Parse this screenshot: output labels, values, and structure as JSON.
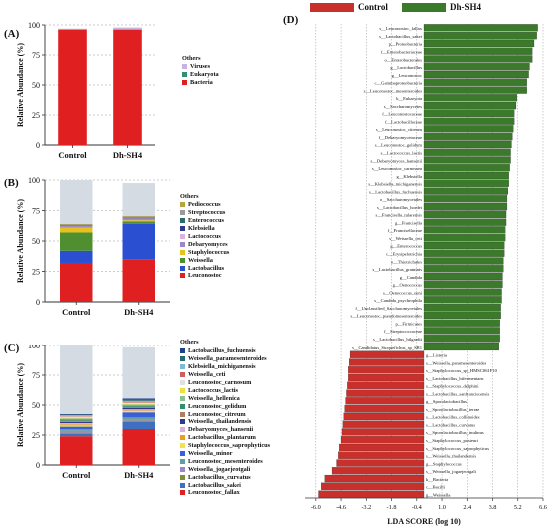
{
  "colors": {
    "control": "#c9302c",
    "dhsh4": "#3a7a2a",
    "grid": "#9a9a9a"
  },
  "panels": {
    "a": {
      "letter": "(A)",
      "ylabel": "Relative Abundance (%)",
      "legend_title": "Others",
      "legend": [
        {
          "name": "Viruses",
          "color": "#c8b4e0"
        },
        {
          "name": "Eukaryota",
          "color": "#2f8f6f"
        },
        {
          "name": "Bacteria",
          "color": "#e02020"
        }
      ]
    },
    "b": {
      "letter": "(B)",
      "ylabel": "Relative Abundance (%)",
      "legend_title": "Others",
      "legend": [
        {
          "name": "Pediococcus",
          "color": "#b5a642"
        },
        {
          "name": "Streptococcus",
          "color": "#9a9a9a"
        },
        {
          "name": "Enterococcus",
          "color": "#2a6b6b"
        },
        {
          "name": "Klebsiella",
          "color": "#2e3a8c"
        },
        {
          "name": "Lactococcus",
          "color": "#d9b3d9"
        },
        {
          "name": "Debaryomyces",
          "color": "#9b87c9"
        },
        {
          "name": "Staphylococcus",
          "color": "#e8c020"
        },
        {
          "name": "Weissella",
          "color": "#4f8f2f"
        },
        {
          "name": "Lactobacillus",
          "color": "#2a4fd0"
        },
        {
          "name": "Leuconostoc",
          "color": "#e02020"
        }
      ]
    },
    "c": {
      "letter": "(C)",
      "ylabel": "Relative Abundance (%)",
      "legend_title": "Others",
      "legend": [
        {
          "name": "Lactobacillus_fuchuensis",
          "color": "#1f3f8f"
        },
        {
          "name": "Weissella_paramesenteroides",
          "color": "#2a6b6b"
        },
        {
          "name": "Klebsiella_michiganensis",
          "color": "#7fb8d8"
        },
        {
          "name": "Weissella_ceti",
          "color": "#d06060"
        },
        {
          "name": "Leuconostoc_carnosum",
          "color": "#e0e0e0"
        },
        {
          "name": "Lactococcus_lactis",
          "color": "#f0e040"
        },
        {
          "name": "Weissella_hellenica",
          "color": "#8fbf8f"
        },
        {
          "name": "Leuconostoc_gelidum",
          "color": "#2f8f6f"
        },
        {
          "name": "Leuconostoc_citreum",
          "color": "#b08060"
        },
        {
          "name": "Weissella_thailandensis",
          "color": "#2e3a8c"
        },
        {
          "name": "Debaryomyces_hansenii",
          "color": "#d9b3d9"
        },
        {
          "name": "Lactobacillus_plantarum",
          "color": "#e8a020"
        },
        {
          "name": "Staphylococcus_saprophyticus",
          "color": "#f5e050"
        },
        {
          "name": "Weissella_minor",
          "color": "#3a5fd8"
        },
        {
          "name": "Leuconostoc_mesenteroides",
          "color": "#5f9f9f"
        },
        {
          "name": "Weissella_jogaejeotgali",
          "color": "#9b87c9"
        },
        {
          "name": "Lactobacillus_curvatus",
          "color": "#7f8f3f"
        },
        {
          "name": "Lactobacillus_sakei",
          "color": "#3f6fbf"
        },
        {
          "name": "Leuconostoc_fallax",
          "color": "#e02020"
        }
      ]
    },
    "d": {
      "letter": "(D)",
      "legend": [
        "Control",
        "Dh-SH4"
      ]
    }
  },
  "chart_data": [
    {
      "type": "bar",
      "panel": "A",
      "categories": [
        "Control",
        "Dh-SH4"
      ],
      "ylabel": "Relative Abundance (%)",
      "ylim": [
        0,
        100
      ],
      "yticks": [
        0,
        25,
        50,
        75,
        100
      ],
      "stacked": true,
      "series": [
        {
          "name": "Bacteria",
          "values": [
            96,
            96
          ]
        },
        {
          "name": "Eukaryota",
          "values": [
            0.3,
            0.3
          ]
        },
        {
          "name": "Viruses",
          "values": [
            0.4,
            1.5
          ]
        },
        {
          "name": "Others",
          "values": [
            0.3,
            0.2
          ]
        }
      ]
    },
    {
      "type": "bar",
      "panel": "B",
      "categories": [
        "Control",
        "Dh-SH4"
      ],
      "ylabel": "Relative Abundance (%)",
      "ylim": [
        0,
        100
      ],
      "yticks": [
        0,
        25,
        50,
        75,
        100
      ],
      "stacked": true,
      "series": [
        {
          "name": "Leuconostoc",
          "values": [
            32,
            35
          ]
        },
        {
          "name": "Lactobacillus",
          "values": [
            10,
            29
          ]
        },
        {
          "name": "Weissella",
          "values": [
            15,
            2
          ]
        },
        {
          "name": "Staphylococcus",
          "values": [
            4,
            1
          ]
        },
        {
          "name": "Debaryomyces",
          "values": [
            0.5,
            1
          ]
        },
        {
          "name": "Lactococcus",
          "values": [
            0.5,
            0.5
          ]
        },
        {
          "name": "Klebsiella",
          "values": [
            0.5,
            0.5
          ]
        },
        {
          "name": "Enterococcus",
          "values": [
            0.5,
            0.5
          ]
        },
        {
          "name": "Streptococcus",
          "values": [
            0.5,
            0.5
          ]
        },
        {
          "name": "Pediococcus",
          "values": [
            0.5,
            0.5
          ]
        },
        {
          "name": "Others",
          "values": [
            36,
            27
          ]
        }
      ]
    },
    {
      "type": "bar",
      "panel": "C",
      "categories": [
        "Control",
        "Dh-SH4"
      ],
      "ylabel": "Relative Abundance (%)",
      "ylim": [
        0,
        100
      ],
      "yticks": [
        0,
        25,
        50,
        75,
        100
      ],
      "stacked": true,
      "series": [
        {
          "name": "Leuconostoc_fallax",
          "values": [
            24,
            30
          ]
        },
        {
          "name": "Lactobacillus_sakei",
          "values": [
            2,
            6
          ]
        },
        {
          "name": "Lactobacillus_curvatus",
          "values": [
            1,
            1
          ]
        },
        {
          "name": "Weissella_jogaejeotgali",
          "values": [
            1.5,
            1
          ]
        },
        {
          "name": "Leuconostoc_mesenteroides",
          "values": [
            1.5,
            2
          ]
        },
        {
          "name": "Weissella_minor",
          "values": [
            2,
            4
          ]
        },
        {
          "name": "Staphylococcus_saprophyticus",
          "values": [
            1,
            1
          ]
        },
        {
          "name": "Lactobacillus_plantarum",
          "values": [
            1,
            0.5
          ]
        },
        {
          "name": "Debaryomyces_hansenii",
          "values": [
            1,
            1
          ]
        },
        {
          "name": "Weissella_thailandensis",
          "values": [
            1,
            1
          ]
        },
        {
          "name": "Leuconostoc_citreum",
          "values": [
            1,
            1
          ]
        },
        {
          "name": "Leuconostoc_gelidum",
          "values": [
            1,
            1
          ]
        },
        {
          "name": "Weissella_hellenica",
          "values": [
            1,
            1
          ]
        },
        {
          "name": "Lactococcus_lactis",
          "values": [
            0.5,
            0.5
          ]
        },
        {
          "name": "Leuconostoc_carnosum",
          "values": [
            1,
            1
          ]
        },
        {
          "name": "Weissella_ceti",
          "values": [
            0.5,
            0.5
          ]
        },
        {
          "name": "Klebsiella_michiganensis",
          "values": [
            0.5,
            1
          ]
        },
        {
          "name": "Weissella_paramesenteroides",
          "values": [
            0.5,
            1
          ]
        },
        {
          "name": "Lactobacillus_fuchuensis",
          "values": [
            0.5,
            1
          ]
        },
        {
          "name": "Others",
          "values": [
            58,
            43
          ]
        }
      ]
    },
    {
      "type": "bar",
      "panel": "D",
      "orientation": "horizontal",
      "xlabel": "LDA SCORE (log 10)",
      "xlim": [
        -6.6,
        6.6
      ],
      "xticks": [
        -6.0,
        -4.6,
        -3.2,
        -1.8,
        -0.4,
        1.0,
        2.4,
        3.8,
        5.2,
        6.6
      ],
      "xtick_labels": [
        "-6.0",
        "-4.6",
        "-3.2",
        "-1.8",
        "-0.4",
        "1.0",
        "2.4",
        "3.8",
        "5.2",
        "6.6"
      ],
      "series": [
        {
          "name": "Dh-SH4",
          "color": "#3a7a2a"
        },
        {
          "name": "Control",
          "color": "#c9302c"
        }
      ],
      "categories": [
        "s__Leuconostoc_fallax",
        "s__Lactobacillus_sakei",
        "p__Proteobacteria",
        "f__Enterobacteriaceae",
        "o__Enterobacterales",
        "g__Lactobacillus",
        "g__Leuconostoc",
        "c__Gammaproteobacteria",
        "s__Leuconostoc_mesenteroides",
        "k__Eukaryota",
        "s__Saccharomycetes",
        "f__Leuconostocaceae",
        "f__Lactobacillaceae",
        "s__Leuconostoc_citreum",
        "f__Debaryomycetaceae",
        "s__Leuconostoc_gelidum",
        "s__Lactococcus_lactis",
        "s__Debaryomyces_hansenii",
        "s__Leuconostoc_carnosum",
        "g__Klebsiella",
        "s__Klebsiella_michiganensis",
        "s__Lactobacillus_fuchuensis",
        "o__Saccharomycetales",
        "s__Lactobacillus_hordei",
        "s__Francisella_tularensis",
        "g__Francisella",
        "f__Francisellaceae",
        "s__Weissella_ceti",
        "g__Enterococcus",
        "c__Erysipelotrichia",
        "o__Thiotrichales",
        "s__Lactobacillus_graminis",
        "g__Candida",
        "g__Oenococcus",
        "s__Oenococcus_oeni",
        "s__Candida_psychrophila",
        "f__Unclassified_Saccharomycetales",
        "s__Leuconostoc_pseudomesenteroides",
        "p__Firmicutes",
        "f__Streptococcaceae",
        "s__Lactobacillus_hilgardii",
        "s__Candidatus_Stoquefichus_sp_SB1",
        "g__Listeria",
        "s__Weissella_paramesenteroides",
        "s__Staphylococcus_sp_HMSC061F10",
        "s__Lactobacillus_bifermentans",
        "s__Staphylococcus_delphini",
        "s__Lactobacillus_sanfranciscensis",
        "g__Sporolactobacillus",
        "s__Sporolactobacillus_terrae",
        "s__Lactobacillus_collinoides",
        "s__Lactobacillus_curvatus",
        "s__Sporolactobacillus_inulinus",
        "s__Staphylococcus_pasteuri",
        "s__Staphylococcus_saprophyticus",
        "s__Weissella_thailandensis",
        "g__Staphylococcus",
        "s__Weissella_jogaejeotgali",
        "k__Bacteria",
        "c__Bacilli",
        "g__Weissella"
      ],
      "values": [
        6.3,
        6.25,
        6.1,
        6.0,
        6.0,
        5.85,
        5.8,
        5.7,
        5.7,
        5.15,
        5.1,
        5.0,
        5.0,
        4.95,
        4.9,
        4.85,
        4.8,
        4.8,
        4.75,
        4.7,
        4.7,
        4.65,
        4.6,
        4.6,
        4.55,
        4.55,
        4.5,
        4.5,
        4.45,
        4.45,
        4.4,
        4.4,
        4.35,
        4.35,
        4.3,
        4.3,
        4.25,
        4.25,
        4.2,
        4.2,
        4.2,
        4.15,
        -4.1,
        -4.15,
        -4.2,
        -4.2,
        -4.25,
        -4.3,
        -4.35,
        -4.4,
        -4.45,
        -4.5,
        -4.55,
        -4.6,
        -4.7,
        -4.75,
        -4.85,
        -5.1,
        -5.5,
        -5.7,
        -5.85
      ]
    }
  ]
}
